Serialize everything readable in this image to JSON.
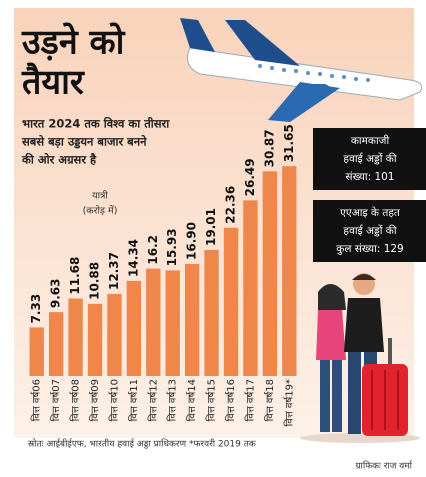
{
  "chart_data": {
    "type": "bar",
    "title": [
      "उड़ने को",
      "तैयार"
    ],
    "subtitle": [
      "भारत 2024 तक विश्व का तीसरा",
      "सबसे बड़ा उड्डयन बाजार बनने",
      "की ओर अग्रसर है"
    ],
    "y_label": [
      "यात्री",
      "(करोड़ में)"
    ],
    "categories": [
      "वित्त वर्ष06",
      "वित्त वर्ष07",
      "वित्त वर्ष08",
      "वित्त वर्ष09",
      "वित्त वर्ष10",
      "वित्त वर्ष11",
      "वित्त वर्ष12",
      "वित्त वर्ष13",
      "वित्त वर्ष14",
      "वित्त वर्ष15",
      "वित्त वर्ष16",
      "वित्त वर्ष17",
      "वित्त वर्ष18",
      "वित्त वर्ष19*"
    ],
    "values": [
      7.33,
      9.63,
      11.68,
      10.88,
      12.37,
      14.34,
      16.2,
      15.93,
      16.9,
      19.01,
      22.36,
      26.49,
      30.87,
      31.65
    ],
    "value_labels": [
      "7.33",
      "9.63",
      "11.68",
      "10.88",
      "12.37",
      "14.34",
      "16.2",
      "15.93",
      "16.90",
      "19.01",
      "22.36",
      "26.49",
      "30.87",
      "31.65"
    ],
    "color": "#f0874a",
    "annotations": [
      [
        "कामकाजी",
        "हवाई अड्डों की",
        "संख्या: 101"
      ],
      [
        "एएआइ के तहत",
        "हवाई अड्डों की",
        "कुल संख्या: 129"
      ]
    ],
    "source": "स्रोतः आईबीईएफ, भारतीय हवाई अड्डा प्राधिकरण *फरवरी 2019 तक",
    "credit": "ग्राफिकः राज वर्मा"
  }
}
